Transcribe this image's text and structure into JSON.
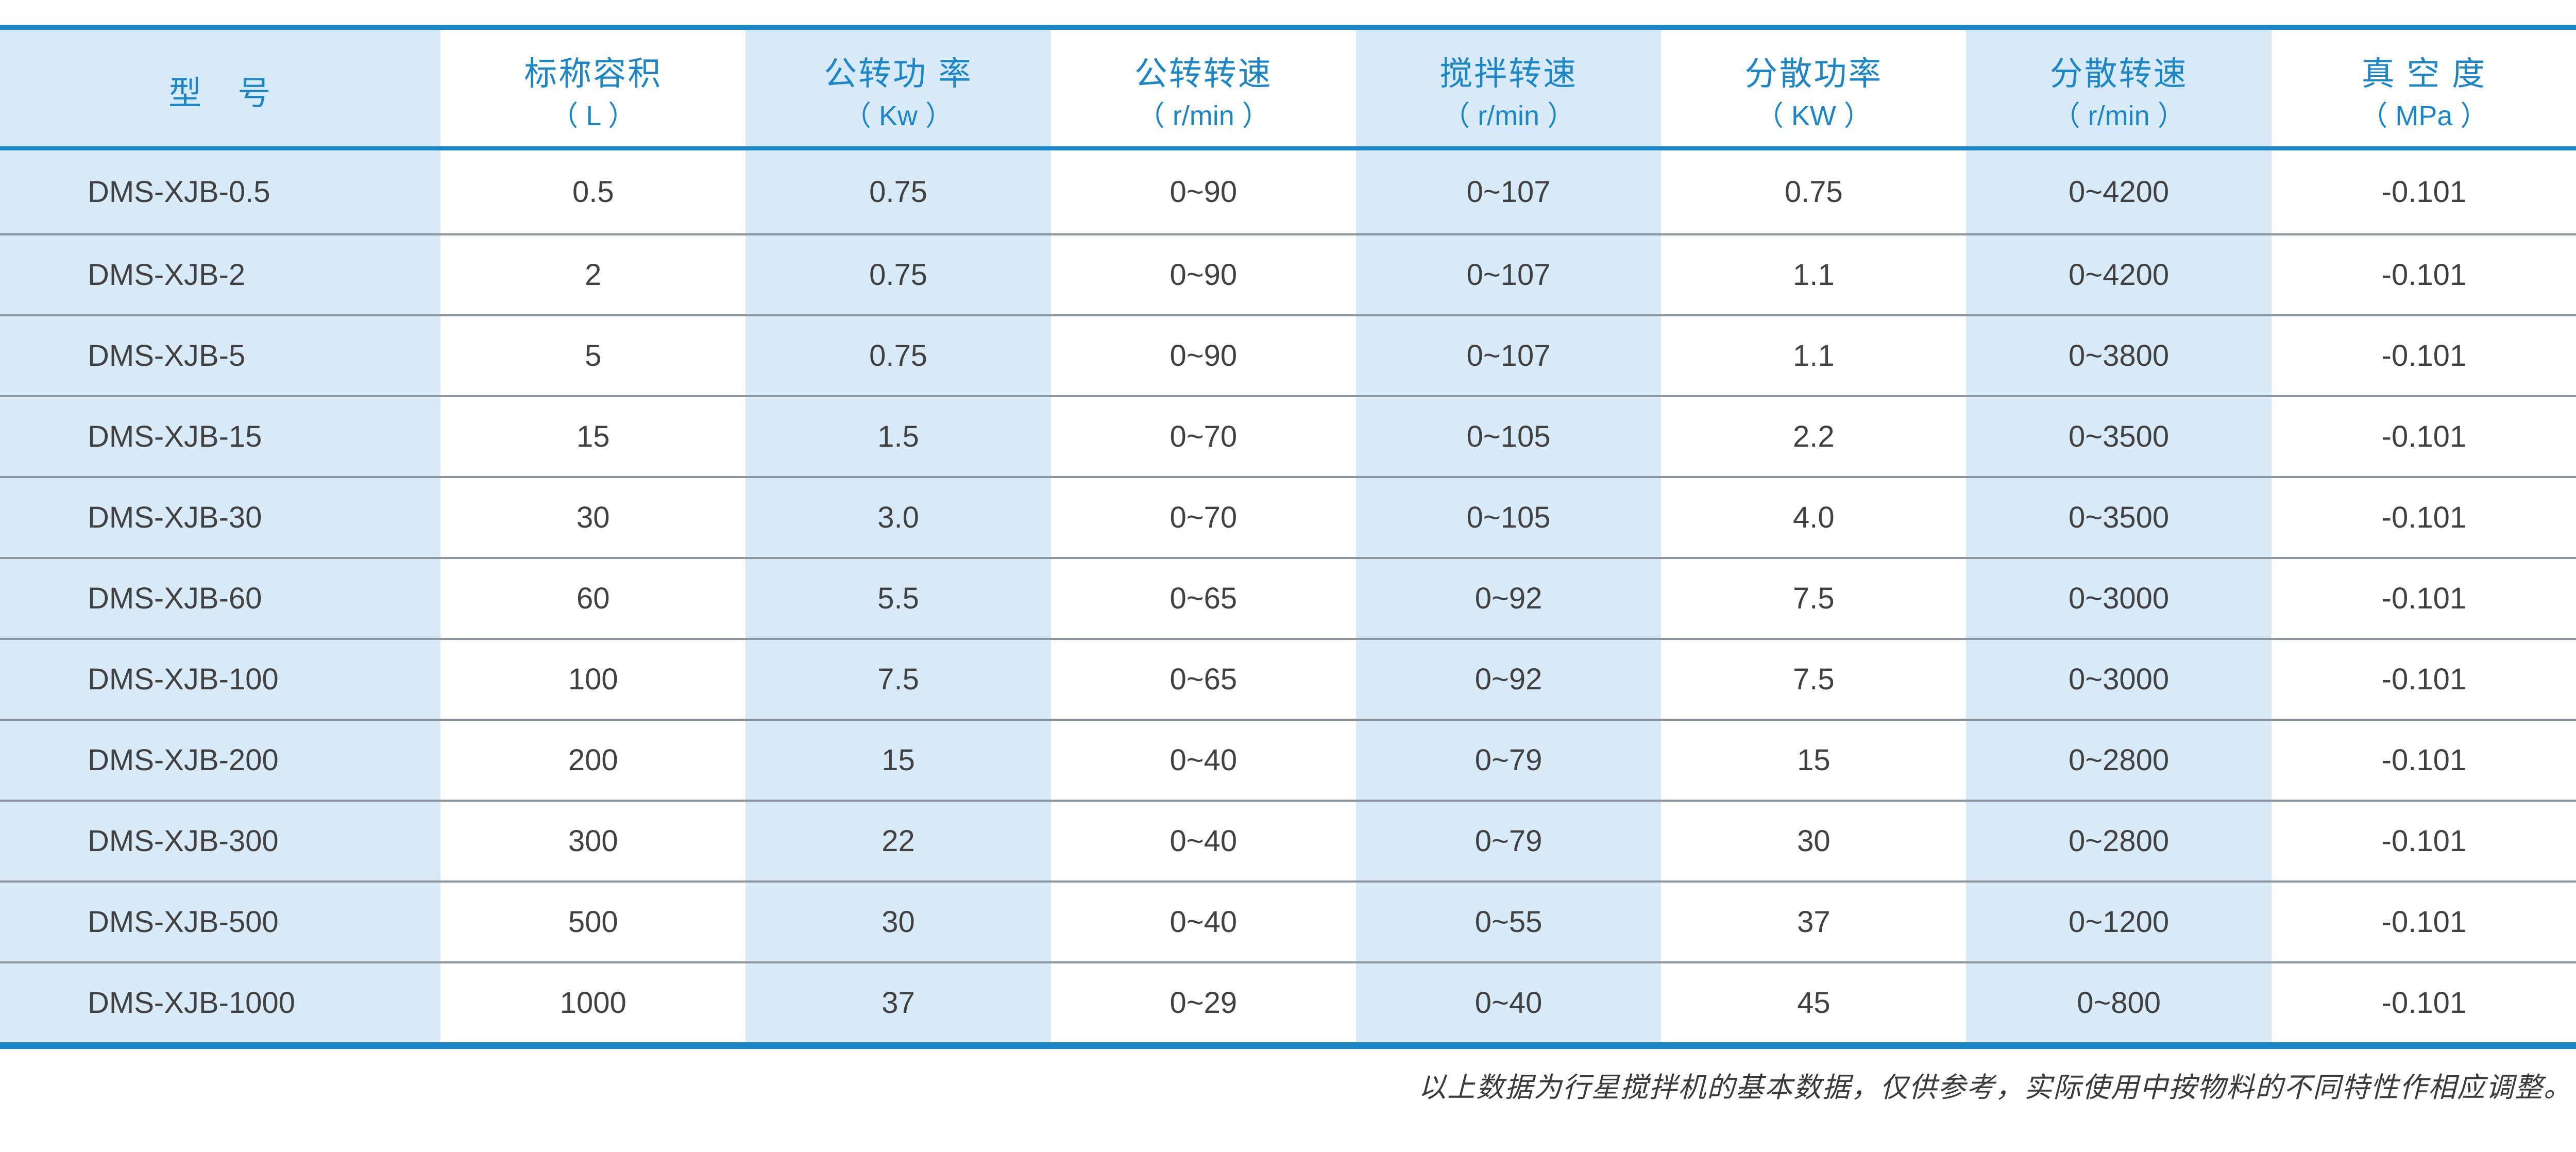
{
  "colors": {
    "accent_blue": "#1b87c9",
    "tint_blue": "#d8eaf8",
    "text_dark": "#414141",
    "separator_gray": "#8a97a0"
  },
  "table": {
    "columns": [
      {
        "title": "型　号",
        "unit": ""
      },
      {
        "title": "标称容积",
        "unit": "（ L ）"
      },
      {
        "title": "公转功 率",
        "unit": "（ Kw ）"
      },
      {
        "title": "公转转速",
        "unit": "（ r/min ）"
      },
      {
        "title": "搅拌转速",
        "unit": "（ r/min ）"
      },
      {
        "title": "分散功率",
        "unit": "（ KW ）"
      },
      {
        "title": "分散转速",
        "unit": "（ r/min ）"
      },
      {
        "title": "真 空 度",
        "unit": "（ MPa ）"
      }
    ],
    "rows": [
      [
        "DMS-XJB-0.5",
        "0.5",
        "0.75",
        "0~90",
        "0~107",
        "0.75",
        "0~4200",
        "-0.101"
      ],
      [
        "DMS-XJB-2",
        "2",
        "0.75",
        "0~90",
        "0~107",
        "1.1",
        "0~4200",
        "-0.101"
      ],
      [
        "DMS-XJB-5",
        "5",
        "0.75",
        "0~90",
        "0~107",
        "1.1",
        "0~3800",
        "-0.101"
      ],
      [
        "DMS-XJB-15",
        "15",
        "1.5",
        "0~70",
        "0~105",
        "2.2",
        "0~3500",
        "-0.101"
      ],
      [
        "DMS-XJB-30",
        "30",
        "3.0",
        "0~70",
        "0~105",
        "4.0",
        "0~3500",
        "-0.101"
      ],
      [
        "DMS-XJB-60",
        "60",
        "5.5",
        "0~65",
        "0~92",
        "7.5",
        "0~3000",
        "-0.101"
      ],
      [
        "DMS-XJB-100",
        "100",
        "7.5",
        "0~65",
        "0~92",
        "7.5",
        "0~3000",
        "-0.101"
      ],
      [
        "DMS-XJB-200",
        "200",
        "15",
        "0~40",
        "0~79",
        "15",
        "0~2800",
        "-0.101"
      ],
      [
        "DMS-XJB-300",
        "300",
        "22",
        "0~40",
        "0~79",
        "30",
        "0~2800",
        "-0.101"
      ],
      [
        "DMS-XJB-500",
        "500",
        "30",
        "0~40",
        "0~55",
        "37",
        "0~1200",
        "-0.101"
      ],
      [
        "DMS-XJB-1000",
        "1000",
        "37",
        "0~29",
        "0~40",
        "45",
        "0~800",
        "-0.101"
      ]
    ]
  },
  "footnote": "以上数据为行星搅拌机的基本数据，仅供参考，实际使用中按物料的不同特性作相应调整。"
}
